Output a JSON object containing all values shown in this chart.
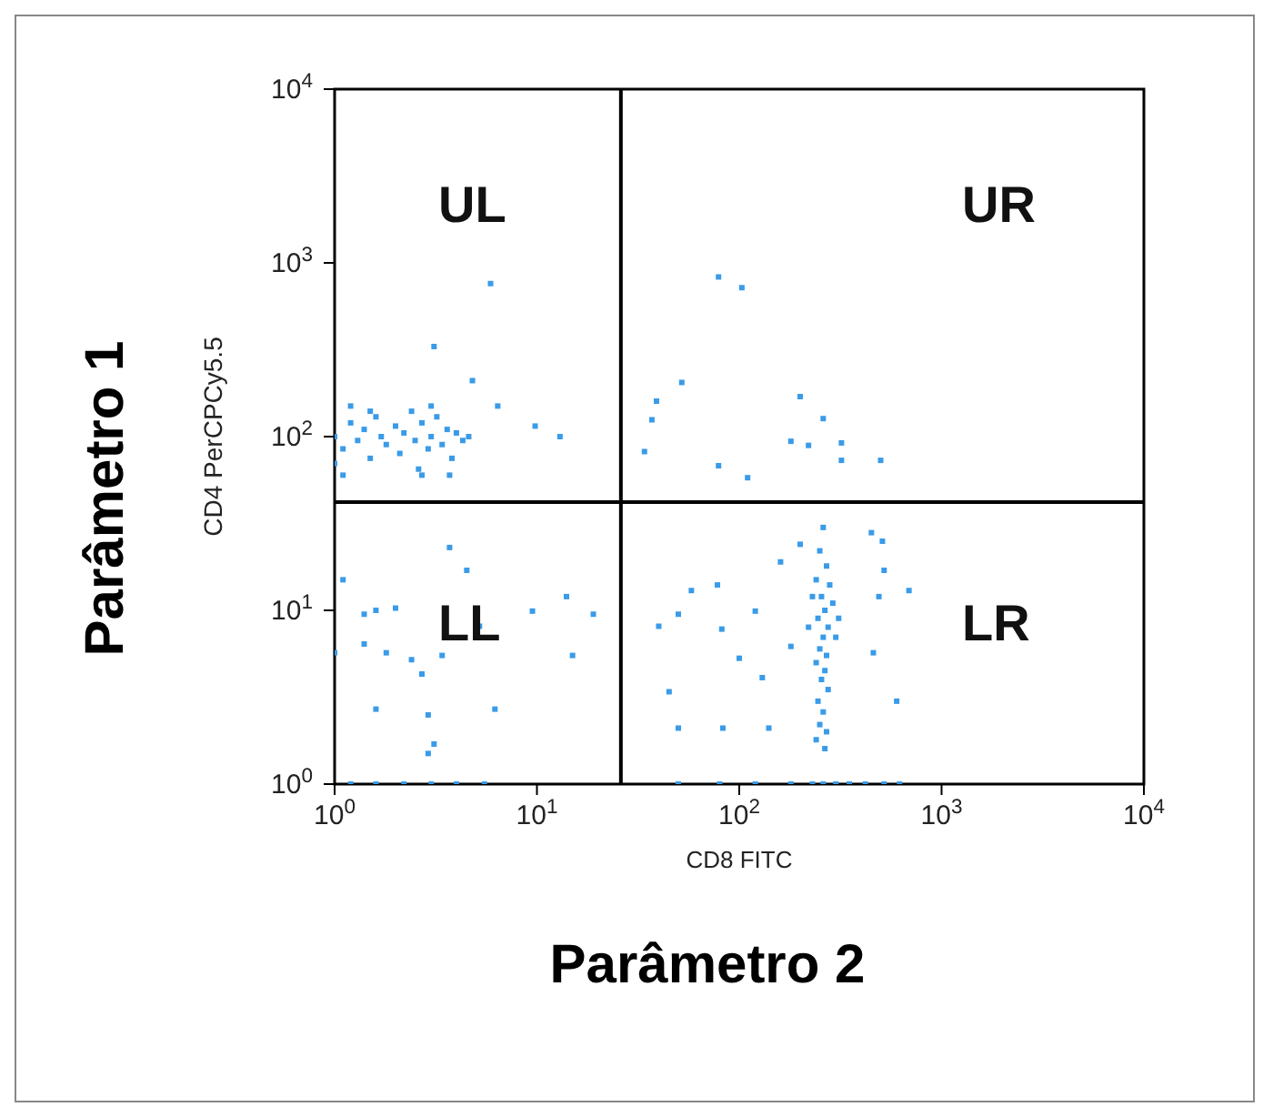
{
  "chart_data": {
    "type": "scatter",
    "xlabel": "CD8 FITC",
    "ylabel": "CD4 PerCPCy5.5",
    "annotations": [
      "Parâmetro 1",
      "Parâmetro 2",
      "UL",
      "UR",
      "LL",
      "LR"
    ],
    "x": [
      1.0,
      1.1,
      1.2,
      1.3,
      1.4,
      1.5,
      1.6,
      1.7,
      1.8,
      2.0,
      2.1,
      2.2,
      2.4,
      2.5,
      2.7,
      2.9,
      3.0,
      3.2,
      3.4,
      3.6,
      3.8,
      4.0,
      4.3,
      4.6,
      1.0,
      1.2,
      1.1,
      1.5,
      2.6,
      3.0,
      5.9,
      3.1,
      4.8,
      6.4,
      9.8,
      13,
      2.7,
      3.7,
      79,
      103,
      39,
      37,
      34,
      52,
      79,
      110,
      200,
      220,
      260,
      320,
      320,
      500,
      180,
      3.7,
      1.1,
      1.4,
      1.6,
      2.0,
      1.4,
      1.0,
      1.8,
      2.4,
      2.7,
      3.4,
      1.6,
      2.9,
      3.1,
      2.9,
      9.5,
      14,
      19,
      15,
      6.2,
      5.2,
      4.5,
      1.2,
      1.6,
      2.2,
      3.0,
      4.0,
      5.5,
      260,
      250,
      270,
      240,
      280,
      255,
      265,
      245,
      275,
      260,
      250,
      270,
      240,
      265,
      255,
      275,
      245,
      260,
      250,
      270,
      240,
      265,
      290,
      300,
      230,
      220,
      310,
      450,
      510,
      520,
      490,
      600,
      460,
      160,
      120,
      78,
      58,
      50,
      40,
      45,
      50,
      83,
      140,
      130,
      180,
      82,
      100,
      200,
      690,
      50,
      80,
      120,
      180,
      230,
      260,
      300,
      350,
      420,
      520,
      620
    ],
    "values": [
      100,
      85,
      120,
      95,
      110,
      75,
      130,
      100,
      90,
      115,
      80,
      105,
      140,
      95,
      120,
      85,
      100,
      130,
      90,
      110,
      75,
      105,
      95,
      100,
      70,
      150,
      60,
      140,
      65,
      150,
      760,
      330,
      210,
      150,
      115,
      100,
      60,
      60,
      830,
      720,
      160,
      125,
      82,
      205,
      68,
      58,
      170,
      89,
      127,
      92,
      73,
      73,
      94,
      23,
      15,
      9.5,
      10,
      10.3,
      6.4,
      5.7,
      5.7,
      5.2,
      4.3,
      5.5,
      2.7,
      2.5,
      1.7,
      1.5,
      9.9,
      12,
      9.5,
      5.5,
      2.7,
      8.1,
      17,
      1,
      1,
      1,
      1,
      1,
      1,
      30,
      22,
      18,
      15,
      14,
      12,
      10,
      9,
      8,
      7,
      6,
      5.5,
      5,
      4.5,
      4,
      3.5,
      3,
      2.6,
      2.2,
      2,
      1.8,
      1.6,
      11,
      7,
      12,
      8,
      9,
      28,
      25,
      17,
      12,
      3,
      5.7,
      19,
      9.9,
      14,
      13,
      9.5,
      8.1,
      3.4,
      2.1,
      2.1,
      2.1,
      4.1,
      6.2,
      7.8,
      5.3,
      24,
      13,
      1,
      1,
      1,
      1,
      1,
      1,
      1,
      1,
      1,
      1,
      1
    ],
    "color": "#3a9be8",
    "marker": "square",
    "log": "xy",
    "grid": false,
    "legend": false,
    "xlim": [
      1,
      10000
    ],
    "ylim": [
      1,
      10000
    ],
    "xticks": [
      {
        "value": 1,
        "label": "10$^{0}$"
      },
      {
        "value": 10,
        "label": "10$^{1}$"
      },
      {
        "value": 100,
        "label": "10$^{2}$"
      },
      {
        "value": 1000,
        "label": "10$^{3}$"
      },
      {
        "value": 10000,
        "label": "10$^{4}$"
      }
    ],
    "yticks": [
      {
        "value": 1,
        "label": "10$^{0}$"
      },
      {
        "value": 10,
        "label": "10$^{1}$"
      },
      {
        "value": 100,
        "label": "10$^{2}$"
      },
      {
        "value": 1000,
        "label": "10$^{3}$"
      },
      {
        "value": 10000,
        "label": "10$^{4}$"
      }
    ],
    "ref_lines": [
      {
        "axis": "x",
        "value": 26,
        "color": "#000000"
      },
      {
        "axis": "y",
        "value": 42,
        "color": "#000000"
      }
    ]
  }
}
